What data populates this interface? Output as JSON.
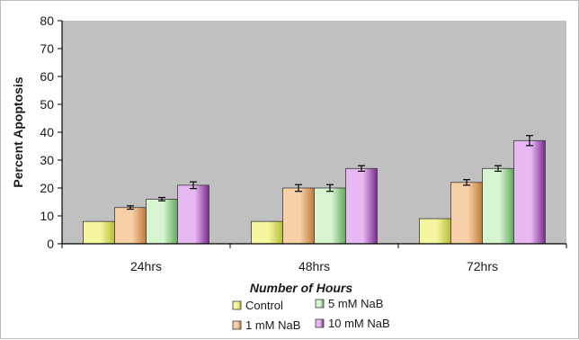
{
  "chart_data": {
    "type": "bar",
    "xlabel": "Number of Hours",
    "ylabel": "Percent Apoptosis",
    "ylim": [
      0,
      80
    ],
    "yticks": [
      0,
      10,
      20,
      30,
      40,
      50,
      60,
      70,
      80
    ],
    "categories": [
      "24hrs",
      "48hrs",
      "72hrs"
    ],
    "grid": false,
    "plot_background": "#c0c0c0",
    "legend_position": "bottom",
    "series": [
      {
        "name": "Control",
        "values": [
          8,
          8,
          9
        ],
        "errors": [
          0,
          0,
          0
        ],
        "color_light": "#f4f7a0",
        "color_dark": "#b8bd36"
      },
      {
        "name": "1 mM NaB",
        "values": [
          13,
          20,
          22
        ],
        "errors": [
          0.6,
          1.2,
          1.0
        ],
        "color_light": "#f7d0a8",
        "color_dark": "#c07a3a"
      },
      {
        "name": "5 mM NaB",
        "values": [
          16,
          20,
          27
        ],
        "errors": [
          0.6,
          1.2,
          1.0
        ],
        "color_light": "#d8f5d2",
        "color_dark": "#5fa85a"
      },
      {
        "name": "10 mM NaB",
        "values": [
          21,
          27,
          37
        ],
        "errors": [
          1.2,
          1.0,
          1.8
        ],
        "color_light": "#e8b8f2",
        "color_dark": "#7a2a8c"
      }
    ]
  }
}
